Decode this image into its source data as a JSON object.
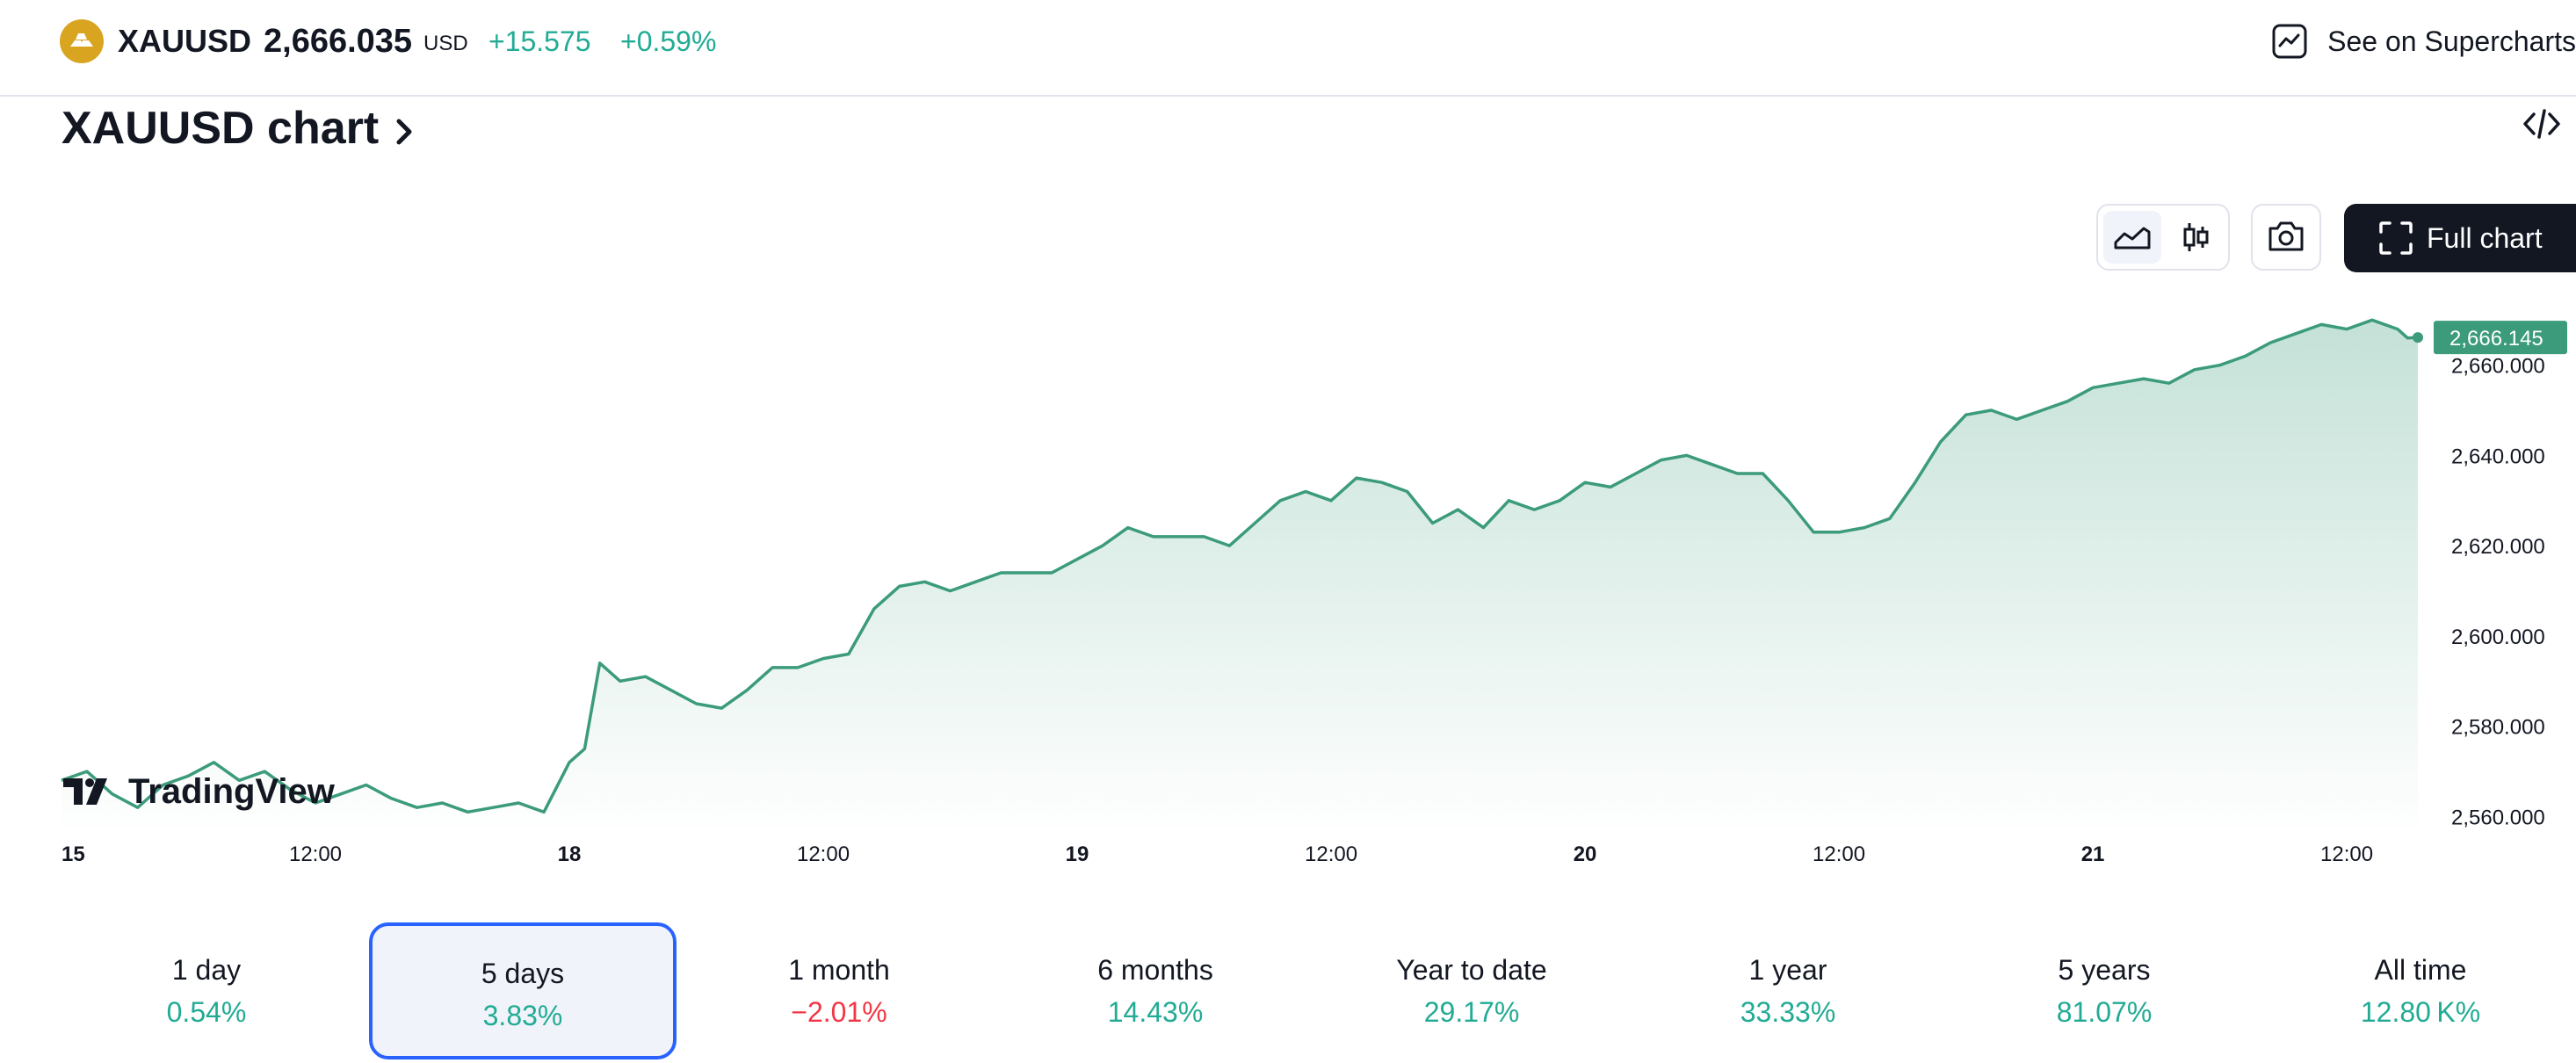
{
  "header": {
    "symbol": "XAUUSD",
    "price": "2,666.035",
    "currency": "USD",
    "change": "+15.575",
    "change_percent": "+0.59%",
    "supercharts_label": "See on Supercharts",
    "logo_icon": "gold-coin-icon"
  },
  "chart_section": {
    "title": "XAUUSD chart",
    "fullchart_label": "Full chart",
    "tools": [
      "area-chart-icon",
      "candlestick-icon",
      "camera-icon",
      "fullscreen-icon",
      "embed-code-icon"
    ]
  },
  "watermark": "TradingView",
  "colors": {
    "line": "#3b9b7b",
    "positive": "#22ab94",
    "negative": "#f23645",
    "selected_border": "#2962ff",
    "dark": "#131722"
  },
  "chart_data": {
    "type": "area",
    "title": "",
    "xlabel": "",
    "ylabel": "",
    "ylim": [
      2556,
      2672
    ],
    "y_ticks": [
      "2,660.000",
      "2,640.000",
      "2,620.000",
      "2,600.000",
      "2,580.000",
      "2,560.000"
    ],
    "y_tick_values": [
      2660,
      2640,
      2620,
      2600,
      2580,
      2560
    ],
    "x_tick_labels": [
      {
        "label": "15",
        "bold": true,
        "t": 0
      },
      {
        "label": "12:00",
        "bold": false,
        "t": 0.5
      },
      {
        "label": "18",
        "bold": true,
        "t": 1
      },
      {
        "label": "12:00",
        "bold": false,
        "t": 1.5
      },
      {
        "label": "19",
        "bold": true,
        "t": 2
      },
      {
        "label": "12:00",
        "bold": false,
        "t": 2.5
      },
      {
        "label": "20",
        "bold": true,
        "t": 3
      },
      {
        "label": "12:00",
        "bold": false,
        "t": 3.5
      },
      {
        "label": "21",
        "bold": true,
        "t": 4
      },
      {
        "label": "12:00",
        "bold": false,
        "t": 4.5
      }
    ],
    "last_price_label": "2,666.145",
    "last_value": 2666.145,
    "series": [
      {
        "x": [
          0,
          0.05,
          0.1,
          0.15,
          0.2,
          0.25,
          0.3,
          0.35,
          0.4,
          0.45,
          0.5,
          0.55,
          0.6,
          0.65,
          0.7,
          0.75,
          0.8,
          0.85,
          0.9,
          0.95,
          1.0,
          1.03,
          1.06,
          1.1,
          1.15,
          1.2,
          1.25,
          1.3,
          1.35,
          1.4,
          1.45,
          1.5,
          1.55,
          1.6,
          1.65,
          1.7,
          1.75,
          1.8,
          1.85,
          1.9,
          1.95,
          2.0,
          2.05,
          2.1,
          2.15,
          2.2,
          2.25,
          2.3,
          2.35,
          2.4,
          2.45,
          2.5,
          2.55,
          2.6,
          2.65,
          2.7,
          2.75,
          2.8,
          2.85,
          2.9,
          2.95,
          3.0,
          3.05,
          3.1,
          3.15,
          3.2,
          3.25,
          3.3,
          3.35,
          3.4,
          3.45,
          3.5,
          3.55,
          3.6,
          3.65,
          3.7,
          3.75,
          3.8,
          3.85,
          3.9,
          3.95,
          4.0,
          4.05,
          4.1,
          4.15,
          4.2,
          4.25,
          4.3,
          4.35,
          4.4,
          4.45,
          4.5,
          4.55,
          4.6,
          4.62,
          4.64
        ],
        "y": [
          2568,
          2570,
          2565,
          2562,
          2567,
          2569,
          2572,
          2568,
          2570,
          2566,
          2563,
          2565,
          2567,
          2564,
          2562,
          2563,
          2561,
          2562,
          2563,
          2561,
          2572,
          2575,
          2594,
          2590,
          2591,
          2588,
          2585,
          2584,
          2588,
          2593,
          2593,
          2595,
          2596,
          2606,
          2611,
          2612,
          2610,
          2612,
          2614,
          2614,
          2614,
          2617,
          2620,
          2624,
          2622,
          2622,
          2622,
          2620,
          2625,
          2630,
          2632,
          2630,
          2635,
          2634,
          2632,
          2625,
          2628,
          2624,
          2630,
          2628,
          2630,
          2634,
          2633,
          2636,
          2639,
          2640,
          2638,
          2636,
          2636,
          2630,
          2623,
          2623,
          2624,
          2626,
          2634,
          2643,
          2649,
          2650,
          2648,
          2650,
          2652,
          2655,
          2656,
          2657,
          2656,
          2659,
          2660,
          2662,
          2665,
          2667,
          2669,
          2668,
          2670,
          2668,
          2666,
          2666.145
        ]
      }
    ]
  },
  "periods": [
    {
      "label": "1 day",
      "value": "0.54%",
      "trend": "up",
      "selected": false
    },
    {
      "label": "5 days",
      "value": "3.83%",
      "trend": "up",
      "selected": true
    },
    {
      "label": "1 month",
      "value": "−2.01%",
      "trend": "down",
      "selected": false
    },
    {
      "label": "6 months",
      "value": "14.43%",
      "trend": "up",
      "selected": false
    },
    {
      "label": "Year to date",
      "value": "29.17%",
      "trend": "up",
      "selected": false
    },
    {
      "label": "1 year",
      "value": "33.33%",
      "trend": "up",
      "selected": false
    },
    {
      "label": "5 years",
      "value": "81.07%",
      "trend": "up",
      "selected": false
    },
    {
      "label": "All time",
      "value": "12.80 K%",
      "trend": "up",
      "selected": false
    }
  ]
}
